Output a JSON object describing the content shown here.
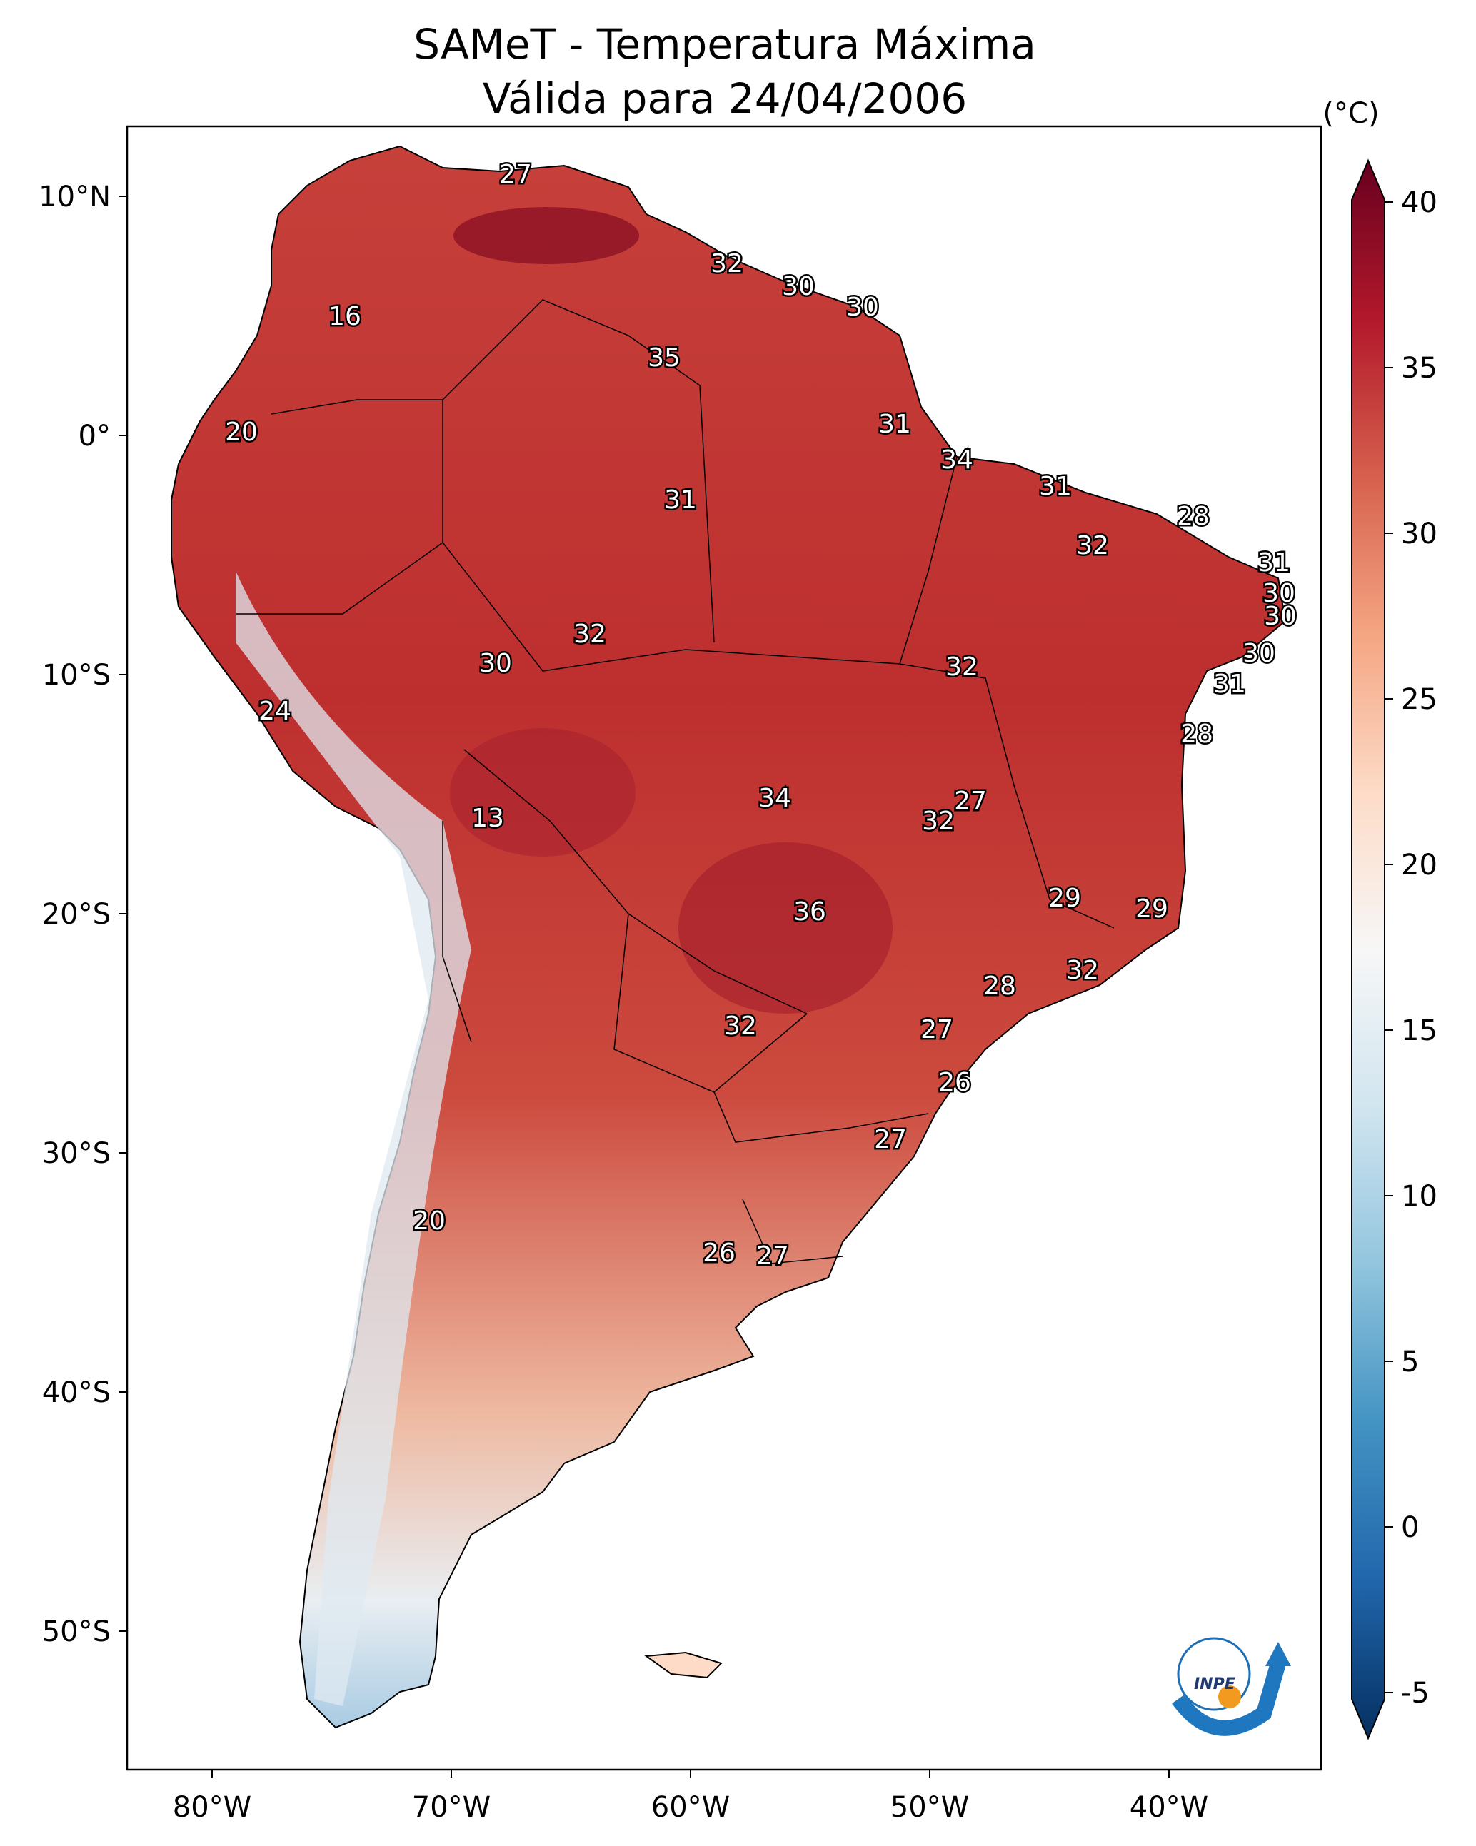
{
  "title_line1": "SAMeT - Temperatura Máxima",
  "title_line2": "Válida para 24/04/2006",
  "colorbar": {
    "unit": "(°C)",
    "ticks": [
      "40",
      "35",
      "30",
      "25",
      "20",
      "15",
      "10",
      "5",
      "0",
      "-5"
    ],
    "colors": [
      "#67001f",
      "#b2182b",
      "#d6604d",
      "#f4a582",
      "#fddbc7",
      "#f7f7f7",
      "#d1e5f0",
      "#92c5de",
      "#4393c3",
      "#2166ac",
      "#053061"
    ]
  },
  "axes": {
    "lat_labels": [
      "10°N",
      "0°",
      "10°S",
      "20°S",
      "30°S",
      "40°S",
      "50°S"
    ],
    "lon_labels": [
      "80°W",
      "70°W",
      "60°W",
      "50°W",
      "40°W"
    ]
  },
  "stations": [
    {
      "value": "27"
    },
    {
      "value": "32"
    },
    {
      "value": "30"
    },
    {
      "value": "30"
    },
    {
      "value": "16"
    },
    {
      "value": "35"
    },
    {
      "value": "20"
    },
    {
      "value": "31"
    },
    {
      "value": "34"
    },
    {
      "value": "31"
    },
    {
      "value": "31"
    },
    {
      "value": "28"
    },
    {
      "value": "32"
    },
    {
      "value": "31"
    },
    {
      "value": "30"
    },
    {
      "value": "30"
    },
    {
      "value": "32"
    },
    {
      "value": "30"
    },
    {
      "value": "32"
    },
    {
      "value": "30"
    },
    {
      "value": "31"
    },
    {
      "value": "24"
    },
    {
      "value": "28"
    },
    {
      "value": "13"
    },
    {
      "value": "34"
    },
    {
      "value": "27"
    },
    {
      "value": "32"
    },
    {
      "value": "36"
    },
    {
      "value": "29"
    },
    {
      "value": "29"
    },
    {
      "value": "32"
    },
    {
      "value": "28"
    },
    {
      "value": "32"
    },
    {
      "value": "27"
    },
    {
      "value": "26"
    },
    {
      "value": "27"
    },
    {
      "value": "20"
    },
    {
      "value": "26"
    },
    {
      "value": "27"
    }
  ],
  "logo_text": "INPE"
}
